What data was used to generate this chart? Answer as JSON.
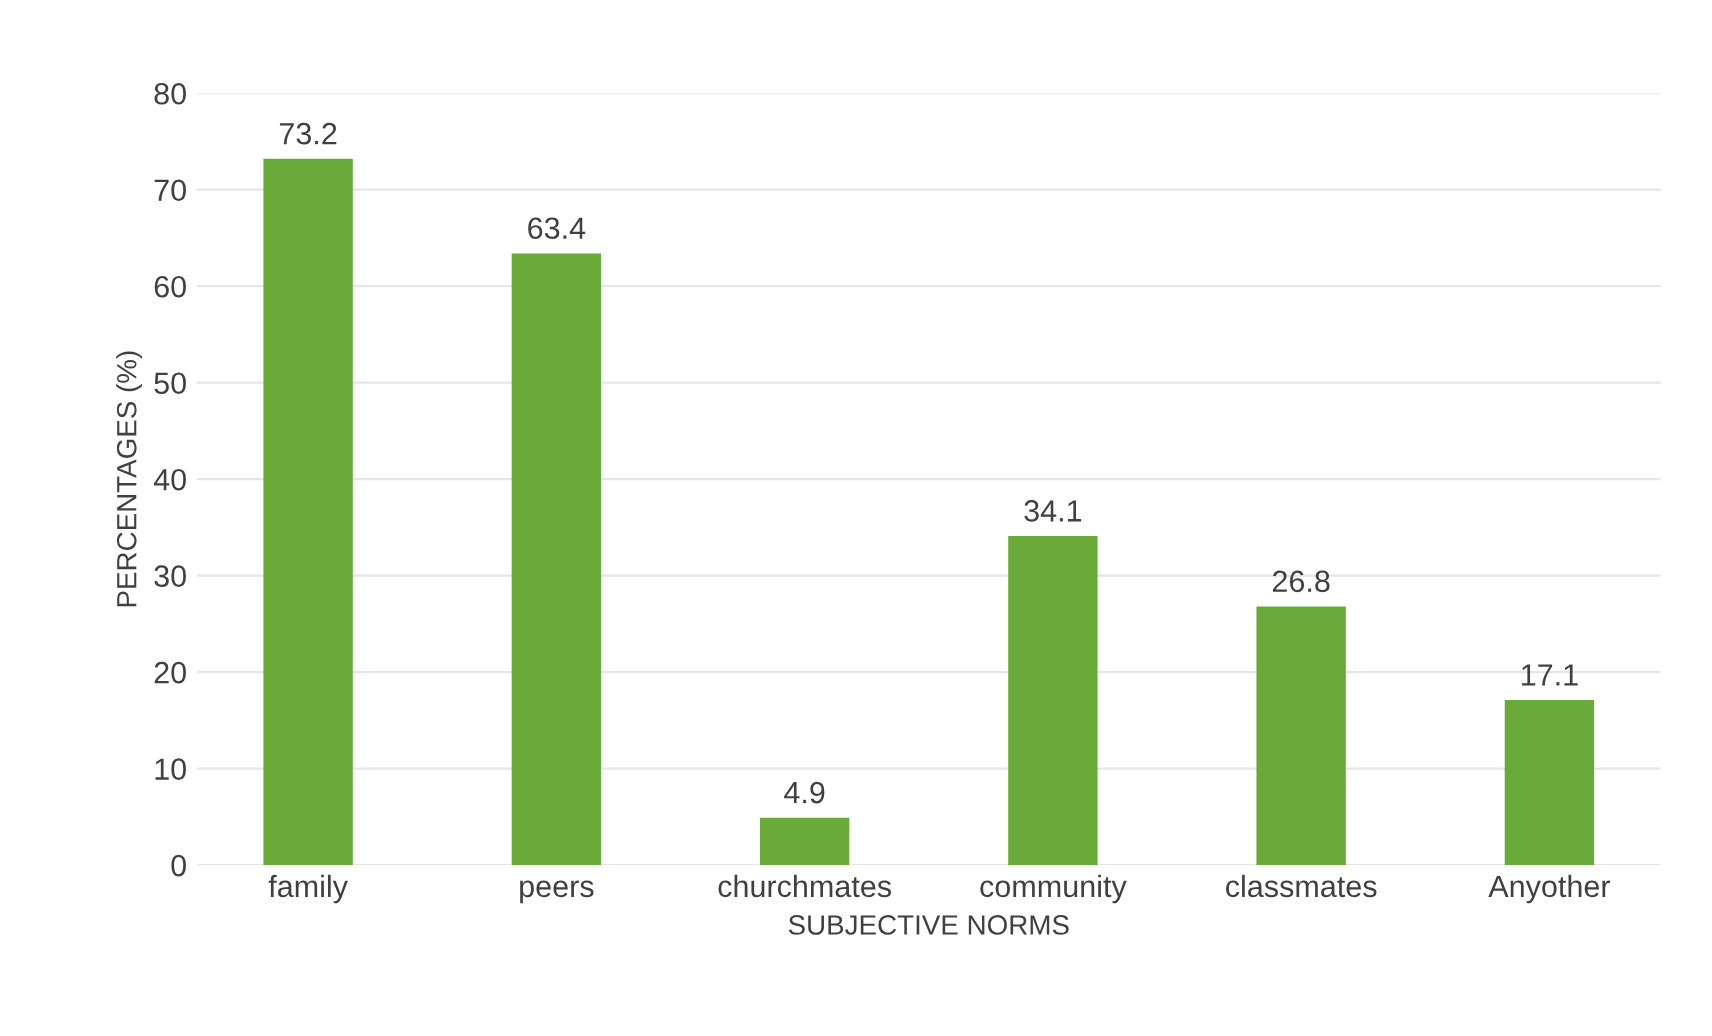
{
  "chart_data": {
    "type": "bar",
    "xlabel": "SUBJECTIVE NORMS",
    "ylabel": "PERCENTAGES (%)",
    "categories": [
      "family",
      "peers",
      "churchmates",
      "community",
      "classmates",
      "Anyother"
    ],
    "values": [
      73.2,
      63.4,
      4.9,
      34.1,
      26.8,
      17.1
    ],
    "color": "#6aaa3a",
    "ylim": [
      0,
      80
    ],
    "yticks": [
      0,
      10,
      20,
      30,
      40,
      50,
      60,
      70,
      80
    ],
    "grid": "y",
    "data_labels": true
  }
}
